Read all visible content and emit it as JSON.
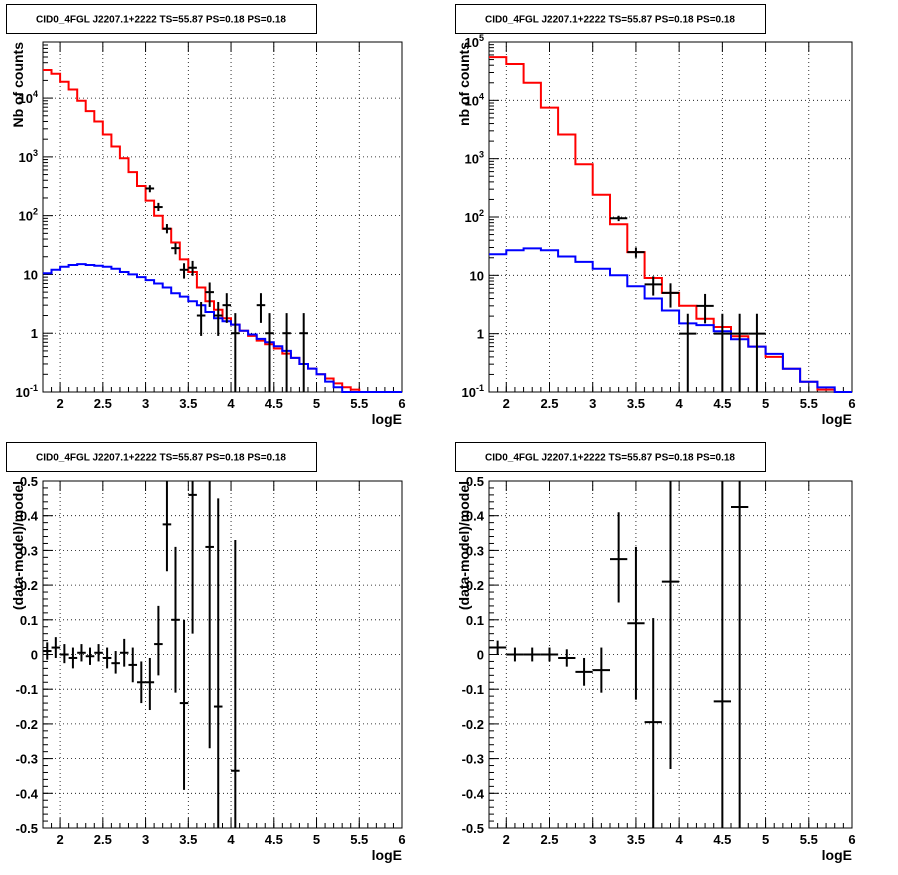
{
  "chart_data": [
    {
      "type": "step-histogram",
      "title": "CID0_4FGL J2207.1+2222 TS=55.87 PS=0.18 PS=0.18",
      "xlabel": "logE",
      "ylabel": "Nb of counts",
      "xlim": [
        1.8,
        6.0
      ],
      "ylim": [
        0.1,
        90000
      ],
      "yscale": "log",
      "grid": true,
      "x_ticks": [
        "2",
        "2.5",
        "3",
        "3.5",
        "4",
        "4.5",
        "5",
        "5.5",
        "6"
      ],
      "y_ticks": [
        "10^-1",
        "1",
        "10",
        "10^2",
        "10^3",
        "10^4"
      ],
      "series": [
        {
          "color": "#ff0000",
          "edges": [
            1.8,
            1.9,
            2.0,
            2.1,
            2.2,
            2.3,
            2.4,
            2.5,
            2.6,
            2.7,
            2.8,
            2.9,
            3.0,
            3.1,
            3.2,
            3.3,
            3.4,
            3.5,
            3.6,
            3.7,
            3.8,
            3.9,
            4.0,
            4.1,
            4.2,
            4.3,
            4.4,
            4.5,
            4.6,
            4.7,
            4.8,
            4.9,
            5.0,
            5.1,
            5.2,
            5.3,
            5.4,
            5.5,
            5.6,
            5.7,
            5.8,
            5.9,
            6.0
          ],
          "values": [
            30000,
            26000,
            19000,
            14000,
            9000,
            6000,
            4000,
            2400,
            1500,
            950,
            550,
            320,
            180,
            100,
            60,
            35,
            18,
            11,
            6,
            3.5,
            2.5,
            1.8,
            1.4,
            1.1,
            0.9,
            0.75,
            0.65,
            0.55,
            0.45,
            0.38,
            0.3,
            0.25,
            0.2,
            0.17,
            0.14,
            0.12,
            0.11,
            0.1,
            0.1,
            0.1,
            0.1,
            0.1
          ]
        },
        {
          "color": "#0000ff",
          "edges": [
            1.8,
            1.9,
            2.0,
            2.1,
            2.2,
            2.3,
            2.4,
            2.5,
            2.6,
            2.7,
            2.8,
            2.9,
            3.0,
            3.1,
            3.2,
            3.3,
            3.4,
            3.5,
            3.6,
            3.7,
            3.8,
            3.9,
            4.0,
            4.1,
            4.2,
            4.3,
            4.4,
            4.5,
            4.6,
            4.7,
            4.8,
            4.9,
            5.0,
            5.1,
            5.2,
            5.3,
            5.4,
            5.5,
            5.6,
            5.7,
            5.8,
            5.9,
            6.0
          ],
          "values": [
            10.5,
            12,
            13.5,
            14.5,
            15,
            14.5,
            14,
            13.5,
            12.5,
            11,
            10,
            9,
            8,
            7,
            6,
            4.8,
            4.2,
            3.5,
            3,
            2.3,
            1.8,
            1.6,
            1.4,
            1.1,
            0.95,
            0.8,
            0.7,
            0.6,
            0.5,
            0.38,
            0.3,
            0.25,
            0.2,
            0.15,
            0.12,
            0.1,
            0.1,
            0.1,
            0.1,
            0.1,
            0.1,
            0.1
          ]
        }
      ],
      "points": [
        {
          "x": 3.05,
          "xerr": 0.05,
          "y": 290,
          "ylo": 250,
          "yhi": 330
        },
        {
          "x": 3.15,
          "xerr": 0.05,
          "y": 140,
          "ylo": 120,
          "yhi": 165
        },
        {
          "x": 3.25,
          "xerr": 0.05,
          "y": 60,
          "ylo": 50,
          "yhi": 72
        },
        {
          "x": 3.35,
          "xerr": 0.05,
          "y": 28,
          "ylo": 22,
          "yhi": 34
        },
        {
          "x": 3.45,
          "xerr": 0.05,
          "y": 12,
          "ylo": 8.5,
          "yhi": 15.5
        },
        {
          "x": 3.55,
          "xerr": 0.05,
          "y": 13,
          "ylo": 9.5,
          "yhi": 17
        },
        {
          "x": 3.65,
          "xerr": 0.05,
          "y": 2,
          "ylo": 0.9,
          "yhi": 3.4
        },
        {
          "x": 3.75,
          "xerr": 0.05,
          "y": 5,
          "ylo": 2.8,
          "yhi": 7.3
        },
        {
          "x": 3.85,
          "xerr": 0.05,
          "y": 2,
          "ylo": 0.9,
          "yhi": 3.4
        },
        {
          "x": 3.95,
          "xerr": 0.05,
          "y": 3,
          "ylo": 1.5,
          "yhi": 4.8
        },
        {
          "x": 4.05,
          "xerr": 0.05,
          "y": 1,
          "ylo": 0.1,
          "yhi": 2.2
        },
        {
          "x": 4.35,
          "xerr": 0.05,
          "y": 3,
          "ylo": 1.5,
          "yhi": 4.8
        },
        {
          "x": 4.45,
          "xerr": 0.05,
          "y": 1,
          "ylo": 0.1,
          "yhi": 2.2
        },
        {
          "x": 4.65,
          "xerr": 0.05,
          "y": 1,
          "ylo": 0.1,
          "yhi": 2.2
        },
        {
          "x": 4.85,
          "xerr": 0.05,
          "y": 1,
          "ylo": 0.1,
          "yhi": 2.2
        }
      ]
    },
    {
      "type": "step-histogram",
      "title": "CID0_4FGL J2207.1+2222 TS=55.87 PS=0.18 PS=0.18",
      "xlabel": "logE",
      "ylabel": "nb of counts",
      "xlim": [
        1.8,
        6.0
      ],
      "ylim": [
        0.1,
        100000
      ],
      "yscale": "log",
      "grid": true,
      "x_ticks": [
        "2",
        "2.5",
        "3",
        "3.5",
        "4",
        "4.5",
        "5",
        "5.5",
        "6"
      ],
      "y_ticks": [
        "10^-1",
        "1",
        "10",
        "10^2",
        "10^3",
        "10^4",
        "10^5"
      ],
      "series": [
        {
          "color": "#ff0000",
          "edges": [
            1.8,
            2.0,
            2.2,
            2.4,
            2.6,
            2.8,
            3.0,
            3.2,
            3.4,
            3.6,
            3.8,
            4.0,
            4.2,
            4.4,
            4.6,
            4.8,
            5.0,
            5.2,
            5.4,
            5.6,
            5.8,
            6.0
          ],
          "values": [
            55000,
            42000,
            20000,
            7500,
            2600,
            800,
            240,
            75,
            25,
            9,
            5,
            3,
            1.8,
            1.3,
            0.9,
            0.6,
            0.4,
            0.25,
            0.15,
            0.11,
            0.1
          ]
        },
        {
          "color": "#0000ff",
          "edges": [
            1.8,
            2.0,
            2.2,
            2.4,
            2.6,
            2.8,
            3.0,
            3.2,
            3.4,
            3.6,
            3.8,
            4.0,
            4.2,
            4.4,
            4.6,
            4.8,
            5.0,
            5.2,
            5.4,
            5.6,
            5.8,
            6.0
          ],
          "values": [
            23,
            27,
            29,
            27,
            21,
            17,
            13,
            10,
            6.5,
            4,
            2.5,
            1.5,
            1.4,
            1.1,
            0.8,
            0.6,
            0.45,
            0.25,
            0.15,
            0.12,
            0.1
          ]
        }
      ],
      "points": [
        {
          "x": 3.3,
          "xerr": 0.1,
          "y": 95,
          "ylo": 85,
          "yhi": 105
        },
        {
          "x": 3.5,
          "xerr": 0.1,
          "y": 25,
          "ylo": 20,
          "yhi": 30
        },
        {
          "x": 3.7,
          "xerr": 0.1,
          "y": 7,
          "ylo": 4.5,
          "yhi": 9.6
        },
        {
          "x": 3.9,
          "xerr": 0.1,
          "y": 5,
          "ylo": 2.8,
          "yhi": 7.3
        },
        {
          "x": 4.1,
          "xerr": 0.1,
          "y": 1,
          "ylo": 0.1,
          "yhi": 2.2
        },
        {
          "x": 4.3,
          "xerr": 0.1,
          "y": 3,
          "ylo": 1.5,
          "yhi": 4.8
        },
        {
          "x": 4.5,
          "xerr": 0.1,
          "y": 1,
          "ylo": 0.1,
          "yhi": 2.2
        },
        {
          "x": 4.7,
          "xerr": 0.1,
          "y": 1,
          "ylo": 0.1,
          "yhi": 2.2
        },
        {
          "x": 4.9,
          "xerr": 0.1,
          "y": 1,
          "ylo": 0.1,
          "yhi": 2.2
        }
      ]
    },
    {
      "type": "scatter",
      "title": "CID0_4FGL J2207.1+2222 TS=55.87 PS=0.18 PS=0.18",
      "xlabel": "logE",
      "ylabel": "(data-model)/model",
      "xlim": [
        1.8,
        6.0
      ],
      "ylim": [
        -0.5,
        0.5
      ],
      "yscale": "linear",
      "grid": true,
      "x_ticks": [
        "2",
        "2.5",
        "3",
        "3.5",
        "4",
        "4.5",
        "5",
        "5.5",
        "6"
      ],
      "y_ticks": [
        "-0.5",
        "-0.4",
        "-0.3",
        "-0.2",
        "-0.1",
        "0",
        "0.1",
        "0.2",
        "0.3",
        "0.4",
        "0.5"
      ],
      "points": [
        {
          "x": 1.85,
          "xerr": 0.05,
          "y": 0.01,
          "ylo": -0.015,
          "yhi": 0.035
        },
        {
          "x": 1.95,
          "xerr": 0.05,
          "y": 0.02,
          "ylo": -0.01,
          "yhi": 0.05
        },
        {
          "x": 2.05,
          "xerr": 0.05,
          "y": 0.0,
          "ylo": -0.025,
          "yhi": 0.03
        },
        {
          "x": 2.15,
          "xerr": 0.05,
          "y": -0.01,
          "ylo": -0.04,
          "yhi": 0.02
        },
        {
          "x": 2.25,
          "xerr": 0.05,
          "y": 0.005,
          "ylo": -0.02,
          "yhi": 0.03
        },
        {
          "x": 2.35,
          "xerr": 0.05,
          "y": -0.005,
          "ylo": -0.03,
          "yhi": 0.02
        },
        {
          "x": 2.45,
          "xerr": 0.05,
          "y": 0.005,
          "ylo": -0.02,
          "yhi": 0.03
        },
        {
          "x": 2.55,
          "xerr": 0.05,
          "y": -0.01,
          "ylo": -0.04,
          "yhi": 0.02
        },
        {
          "x": 2.65,
          "xerr": 0.05,
          "y": -0.025,
          "ylo": -0.055,
          "yhi": 0.01
        },
        {
          "x": 2.75,
          "xerr": 0.05,
          "y": 0.005,
          "ylo": -0.035,
          "yhi": 0.045
        },
        {
          "x": 2.85,
          "xerr": 0.05,
          "y": -0.03,
          "ylo": -0.08,
          "yhi": 0.02
        },
        {
          "x": 2.95,
          "xerr": 0.05,
          "y": -0.08,
          "ylo": -0.14,
          "yhi": -0.02
        },
        {
          "x": 3.05,
          "xerr": 0.05,
          "y": -0.08,
          "ylo": -0.16,
          "yhi": -0.01
        },
        {
          "x": 3.15,
          "xerr": 0.05,
          "y": 0.03,
          "ylo": -0.06,
          "yhi": 0.14
        },
        {
          "x": 3.25,
          "xerr": 0.05,
          "y": 0.375,
          "ylo": 0.24,
          "yhi": 0.5
        },
        {
          "x": 3.35,
          "xerr": 0.05,
          "y": 0.1,
          "ylo": -0.11,
          "yhi": 0.31
        },
        {
          "x": 3.45,
          "xerr": 0.05,
          "y": -0.14,
          "ylo": -0.39,
          "yhi": 0.1
        },
        {
          "x": 3.55,
          "xerr": 0.05,
          "y": 0.46,
          "ylo": 0.06,
          "yhi": 0.5
        },
        {
          "x": 3.75,
          "xerr": 0.05,
          "y": 0.31,
          "ylo": -0.27,
          "yhi": 0.5
        },
        {
          "x": 3.85,
          "xerr": 0.05,
          "y": -0.15,
          "ylo": -0.5,
          "yhi": 0.45
        },
        {
          "x": 4.05,
          "xerr": 0.05,
          "y": -0.335,
          "ylo": -0.5,
          "yhi": 0.33
        }
      ]
    },
    {
      "type": "scatter",
      "title": "CID0_4FGL J2207.1+2222 TS=55.87 PS=0.18 PS=0.18",
      "xlabel": "logE",
      "ylabel": "(data-model)/model",
      "xlim": [
        1.8,
        6.0
      ],
      "ylim": [
        -0.5,
        0.5
      ],
      "yscale": "linear",
      "grid": true,
      "x_ticks": [
        "2",
        "2.5",
        "3",
        "3.5",
        "4",
        "4.5",
        "5",
        "5.5",
        "6"
      ],
      "y_ticks": [
        "-0.5",
        "-0.4",
        "-0.3",
        "-0.2",
        "-0.1",
        "0",
        "0.1",
        "0.2",
        "0.3",
        "0.4",
        "0.5"
      ],
      "points": [
        {
          "x": 1.9,
          "xerr": 0.1,
          "y": 0.02,
          "ylo": 0.0,
          "yhi": 0.04
        },
        {
          "x": 2.1,
          "xerr": 0.1,
          "y": 0.0,
          "ylo": -0.02,
          "yhi": 0.02
        },
        {
          "x": 2.3,
          "xerr": 0.1,
          "y": 0.0,
          "ylo": -0.02,
          "yhi": 0.02
        },
        {
          "x": 2.5,
          "xerr": 0.1,
          "y": 0.0,
          "ylo": -0.02,
          "yhi": 0.02
        },
        {
          "x": 2.7,
          "xerr": 0.1,
          "y": -0.01,
          "ylo": -0.035,
          "yhi": 0.015
        },
        {
          "x": 2.9,
          "xerr": 0.1,
          "y": -0.05,
          "ylo": -0.09,
          "yhi": -0.01
        },
        {
          "x": 3.1,
          "xerr": 0.1,
          "y": -0.045,
          "ylo": -0.11,
          "yhi": 0.02
        },
        {
          "x": 3.3,
          "xerr": 0.1,
          "y": 0.275,
          "ylo": 0.15,
          "yhi": 0.41
        },
        {
          "x": 3.5,
          "xerr": 0.1,
          "y": 0.09,
          "ylo": -0.13,
          "yhi": 0.31
        },
        {
          "x": 3.7,
          "xerr": 0.1,
          "y": -0.195,
          "ylo": -0.5,
          "yhi": 0.105
        },
        {
          "x": 3.9,
          "xerr": 0.1,
          "y": 0.21,
          "ylo": -0.33,
          "yhi": 0.5
        },
        {
          "x": 4.5,
          "xerr": 0.1,
          "y": -0.135,
          "ylo": -0.5,
          "yhi": 0.5
        },
        {
          "x": 4.7,
          "xerr": 0.1,
          "y": 0.425,
          "ylo": -0.5,
          "yhi": 0.5
        }
      ]
    }
  ]
}
